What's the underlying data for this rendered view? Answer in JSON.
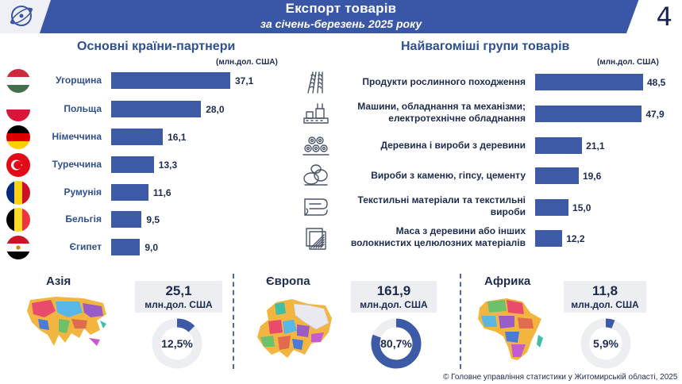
{
  "header": {
    "title": "Експорт товарів",
    "subtitle": "за січень-березень 2025 року",
    "page_number": "4"
  },
  "partners": {
    "title": "Основні країни-партнери",
    "unit": "(млн.дол. США)"
  },
  "groups": {
    "title": "Найвагоміші групи товарів",
    "unit": "(млн.дол. США)"
  },
  "chart_data": [
    {
      "type": "bar",
      "orientation": "horizontal",
      "title": "Основні країни-партнери",
      "ylabel": "(млн.дол. США)",
      "categories": [
        "Угорщина",
        "Польща",
        "Німеччина",
        "Туреччина",
        "Румунія",
        "Бельгія",
        "Єгипет"
      ],
      "values": [
        37.1,
        28.0,
        16.1,
        13.3,
        11.6,
        9.5,
        9.0
      ],
      "value_labels": [
        "37,1",
        "28,0",
        "16,1",
        "13,3",
        "11,6",
        "9,5",
        "9,0"
      ],
      "color": "#3c5aa5",
      "flags": [
        "hungary",
        "poland",
        "germany",
        "turkey",
        "romania",
        "belgium",
        "egypt"
      ]
    },
    {
      "type": "bar",
      "orientation": "horizontal",
      "title": "Найвагоміші групи товарів",
      "ylabel": "(млн.дол. США)",
      "categories": [
        [
          "Продукти рослинного походження"
        ],
        [
          "Машини, обладнання та механізми;",
          "електротехнічне обладнання"
        ],
        [
          "Деревина і вироби з деревини"
        ],
        [
          "Вироби з каменю, гіпсу, цементу"
        ],
        [
          "Текстильні матеріали та текстильні",
          "вироби"
        ],
        [
          "Маса з деревини або інших",
          "волокнистих целюлозних матеріалів"
        ]
      ],
      "values": [
        48.5,
        47.9,
        21.1,
        19.6,
        15.0,
        12.2
      ],
      "value_labels": [
        "48,5",
        "47,9",
        "21,1",
        "19,6",
        "15,0",
        "12,2"
      ],
      "color": "#3c5aa5",
      "icons": [
        "wheat-icon",
        "machine-icon",
        "logs-icon",
        "stones-icon",
        "fabric-icon",
        "paper-icon"
      ]
    },
    {
      "type": "pie",
      "variant": "donut",
      "regions": [
        {
          "name": "Азія",
          "value": "25,1",
          "unit": "млн.дол. США",
          "share": 12.5,
          "share_label": "12,5%"
        },
        {
          "name": "Європа",
          "value": "161,9",
          "unit": "млн.дол. США",
          "share": 80.7,
          "share_label": "80,7%"
        },
        {
          "name": "Африка",
          "value": "11,8",
          "unit": "млн.дол. США",
          "share": 5.9,
          "share_label": "5,9%"
        }
      ],
      "colors": {
        "fill": "#3c5aa5",
        "track": "#eceef2"
      }
    }
  ],
  "footer": "© Головне управління статистики у Житомирській області, 2025"
}
